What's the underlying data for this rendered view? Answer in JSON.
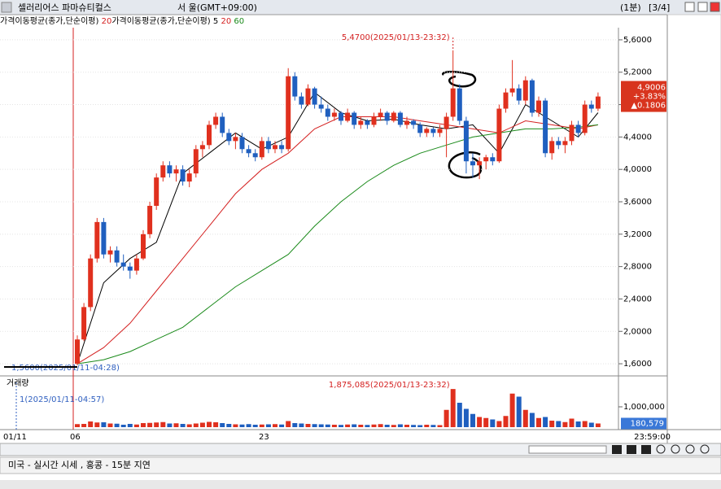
{
  "header": {
    "title": "셀러리어스 파마슈티컬스",
    "location": "서 울(GMT+09:00)",
    "interval": "(1분)",
    "page": "[3/4]"
  },
  "chart_data": {
    "type": "candlestick",
    "legend": {
      "ma_label_1": "가격이동평균(종가,단순이평)",
      "ma_period_1": "20",
      "ma_label_2": "가격이동평균(종가,단순이평)",
      "ma_periods": [
        "5",
        "20",
        "60"
      ]
    },
    "ylim": [
      1.45,
      5.75
    ],
    "yticks": [
      {
        "value": 1.6,
        "label": "1,6000"
      },
      {
        "value": 2.0,
        "label": "2,0000"
      },
      {
        "value": 2.4,
        "label": "2,4000"
      },
      {
        "value": 2.8,
        "label": "2,8000"
      },
      {
        "value": 3.2,
        "label": "3,2000"
      },
      {
        "value": 3.6,
        "label": "3,6000"
      },
      {
        "value": 4.0,
        "label": "4,0000"
      },
      {
        "value": 4.4,
        "label": "4,4000"
      },
      {
        "value": 4.8,
        "label": "4,8000"
      },
      {
        "value": 5.2,
        "label": "5,2000"
      },
      {
        "value": 5.6,
        "label": "5,6000"
      }
    ],
    "base_price": 1.56,
    "candles": [
      [
        1.6,
        1.95,
        1.58,
        1.9
      ],
      [
        1.9,
        2.35,
        1.88,
        2.3
      ],
      [
        2.3,
        2.95,
        2.25,
        2.9
      ],
      [
        2.9,
        3.4,
        2.85,
        3.35
      ],
      [
        3.35,
        3.4,
        2.9,
        2.95
      ],
      [
        2.95,
        3.05,
        2.85,
        3.0
      ],
      [
        3.0,
        3.05,
        2.8,
        2.85
      ],
      [
        2.85,
        2.95,
        2.75,
        2.8
      ],
      [
        2.8,
        2.85,
        2.65,
        2.75
      ],
      [
        2.75,
        2.95,
        2.7,
        2.9
      ],
      [
        2.9,
        3.25,
        2.88,
        3.2
      ],
      [
        3.2,
        3.6,
        3.15,
        3.55
      ],
      [
        3.55,
        3.95,
        3.5,
        3.9
      ],
      [
        3.9,
        4.1,
        3.85,
        4.05
      ],
      [
        4.05,
        4.1,
        3.9,
        3.95
      ],
      [
        3.95,
        4.05,
        3.85,
        4.0
      ],
      [
        4.0,
        4.05,
        3.8,
        3.85
      ],
      [
        3.85,
        4.0,
        3.78,
        3.95
      ],
      [
        3.95,
        4.3,
        3.9,
        4.25
      ],
      [
        4.25,
        4.35,
        4.15,
        4.3
      ],
      [
        4.3,
        4.6,
        4.25,
        4.55
      ],
      [
        4.55,
        4.7,
        4.5,
        4.65
      ],
      [
        4.65,
        4.7,
        4.4,
        4.45
      ],
      [
        4.45,
        4.5,
        4.3,
        4.35
      ],
      [
        4.35,
        4.45,
        4.25,
        4.4
      ],
      [
        4.4,
        4.45,
        4.2,
        4.25
      ],
      [
        4.25,
        4.3,
        4.15,
        4.2
      ],
      [
        4.2,
        4.25,
        4.1,
        4.15
      ],
      [
        4.15,
        4.4,
        4.12,
        4.35
      ],
      [
        4.35,
        4.4,
        4.2,
        4.25
      ],
      [
        4.25,
        4.35,
        4.2,
        4.3
      ],
      [
        4.3,
        4.35,
        4.2,
        4.25
      ],
      [
        4.25,
        5.25,
        4.22,
        5.15
      ],
      [
        5.15,
        5.2,
        4.85,
        4.9
      ],
      [
        4.9,
        4.95,
        4.75,
        4.8
      ],
      [
        4.8,
        5.05,
        4.78,
        5.0
      ],
      [
        5.0,
        5.02,
        4.75,
        4.8
      ],
      [
        4.8,
        4.9,
        4.7,
        4.75
      ],
      [
        4.75,
        4.8,
        4.6,
        4.65
      ],
      [
        4.65,
        4.75,
        4.6,
        4.7
      ],
      [
        4.7,
        4.72,
        4.55,
        4.6
      ],
      [
        4.6,
        4.75,
        4.58,
        4.7
      ],
      [
        4.7,
        4.72,
        4.5,
        4.55
      ],
      [
        4.55,
        4.65,
        4.5,
        4.6
      ],
      [
        4.6,
        4.62,
        4.5,
        4.55
      ],
      [
        4.55,
        4.7,
        4.52,
        4.65
      ],
      [
        4.65,
        4.75,
        4.6,
        4.7
      ],
      [
        4.7,
        4.72,
        4.55,
        4.6
      ],
      [
        4.6,
        4.72,
        4.58,
        4.7
      ],
      [
        4.7,
        4.72,
        4.52,
        4.55
      ],
      [
        4.55,
        4.65,
        4.5,
        4.6
      ],
      [
        4.6,
        4.62,
        4.5,
        4.55
      ],
      [
        4.55,
        4.58,
        4.4,
        4.45
      ],
      [
        4.45,
        4.52,
        4.4,
        4.5
      ],
      [
        4.5,
        4.52,
        4.4,
        4.45
      ],
      [
        4.45,
        4.55,
        4.4,
        4.5
      ],
      [
        4.5,
        4.7,
        4.15,
        4.65
      ],
      [
        4.65,
        5.47,
        4.6,
        5.0
      ],
      [
        5.0,
        5.05,
        4.55,
        4.6
      ],
      [
        4.6,
        4.65,
        3.95,
        4.1
      ],
      [
        4.1,
        4.2,
        3.9,
        4.05
      ],
      [
        4.05,
        4.15,
        3.88,
        4.1
      ],
      [
        4.1,
        4.18,
        4.0,
        4.15
      ],
      [
        4.15,
        4.2,
        4.05,
        4.1
      ],
      [
        4.1,
        4.8,
        4.08,
        4.75
      ],
      [
        4.75,
        5.0,
        4.7,
        4.95
      ],
      [
        4.95,
        5.35,
        4.9,
        5.0
      ],
      [
        5.0,
        5.05,
        4.8,
        4.85
      ],
      [
        4.85,
        5.15,
        4.8,
        5.1
      ],
      [
        5.1,
        5.12,
        4.65,
        4.7
      ],
      [
        4.7,
        4.9,
        4.65,
        4.85
      ],
      [
        4.85,
        4.88,
        4.15,
        4.2
      ],
      [
        4.2,
        4.4,
        4.12,
        4.35
      ],
      [
        4.35,
        4.4,
        4.25,
        4.3
      ],
      [
        4.3,
        4.4,
        4.2,
        4.35
      ],
      [
        4.35,
        4.6,
        4.3,
        4.55
      ],
      [
        4.55,
        4.6,
        4.4,
        4.45
      ],
      [
        4.45,
        4.85,
        4.42,
        4.8
      ],
      [
        4.8,
        4.85,
        4.7,
        4.75
      ],
      [
        4.75,
        4.95,
        4.72,
        4.9
      ]
    ],
    "ma_lines": [
      {
        "name": "5",
        "color": "#000000",
        "x": [
          0,
          4,
          8,
          12,
          16,
          20,
          24,
          28,
          32,
          36,
          40,
          44,
          48,
          52,
          56,
          60,
          64,
          68,
          72,
          76,
          79
        ],
        "values": [
          1.6,
          2.6,
          2.9,
          3.1,
          3.95,
          4.2,
          4.45,
          4.25,
          4.4,
          4.95,
          4.7,
          4.6,
          4.62,
          4.55,
          4.5,
          4.55,
          4.2,
          4.8,
          4.6,
          4.4,
          4.7
        ]
      },
      {
        "name": "20",
        "color": "#d42020",
        "x": [
          0,
          4,
          8,
          12,
          16,
          20,
          24,
          28,
          32,
          36,
          40,
          44,
          48,
          52,
          56,
          60,
          64,
          68,
          72,
          76,
          79
        ],
        "values": [
          1.6,
          1.8,
          2.1,
          2.5,
          2.9,
          3.3,
          3.7,
          4.0,
          4.2,
          4.5,
          4.65,
          4.65,
          4.65,
          4.6,
          4.55,
          4.5,
          4.45,
          4.6,
          4.55,
          4.5,
          4.55
        ]
      },
      {
        "name": "60",
        "color": "#1a8a1a",
        "x": [
          0,
          4,
          8,
          12,
          16,
          20,
          24,
          28,
          32,
          36,
          40,
          44,
          48,
          52,
          56,
          60,
          64,
          68,
          72,
          76,
          79
        ],
        "values": [
          1.6,
          1.65,
          1.75,
          1.9,
          2.05,
          2.3,
          2.55,
          2.75,
          2.95,
          3.3,
          3.6,
          3.85,
          4.05,
          4.2,
          4.3,
          4.4,
          4.45,
          4.5,
          4.5,
          4.52,
          4.55
        ]
      }
    ],
    "high_annotation": "5,4700(2025/01/13-23:32)",
    "low_annotation": "1,5600(2025/01/11-04:28)",
    "current": {
      "price": {
        "value": 4.9006,
        "label": "4,9006"
      },
      "change_pct": "+3.83%",
      "change": "▲0.1806"
    },
    "volume": {
      "title": "거래량",
      "ylim": [
        0,
        2000000
      ],
      "yticks": [
        {
          "value": 1000000,
          "label": "1,000,000"
        }
      ],
      "low_annotation": "1(2025/01/11-04:57)",
      "high_annotation": "1,875,085(2025/01/13-23:32)",
      "current": {
        "value": 180579,
        "label": "180,579"
      },
      "values": [
        150000,
        160000,
        280000,
        230000,
        240000,
        180000,
        170000,
        120000,
        160000,
        130000,
        200000,
        210000,
        230000,
        250000,
        180000,
        190000,
        160000,
        140000,
        180000,
        220000,
        260000,
        240000,
        200000,
        160000,
        140000,
        130000,
        150000,
        120000,
        130000,
        140000,
        150000,
        130000,
        300000,
        200000,
        180000,
        160000,
        150000,
        140000,
        130000,
        120000,
        110000,
        130000,
        140000,
        120000,
        110000,
        130000,
        150000,
        120000,
        110000,
        140000,
        120000,
        110000,
        100000,
        120000,
        110000,
        100000,
        850000,
        1875085,
        1200000,
        900000,
        650000,
        500000,
        450000,
        380000,
        300000,
        550000,
        1650000,
        1500000,
        850000,
        700000,
        450000,
        500000,
        320000,
        300000,
        250000,
        420000,
        280000,
        300000,
        220000,
        180579
      ]
    },
    "x_labels": [
      "01/11",
      "06",
      "23",
      "23:59:00"
    ]
  },
  "status_bar": "미국 - 실시간 시세 , 홍콩 - 15분 지연"
}
